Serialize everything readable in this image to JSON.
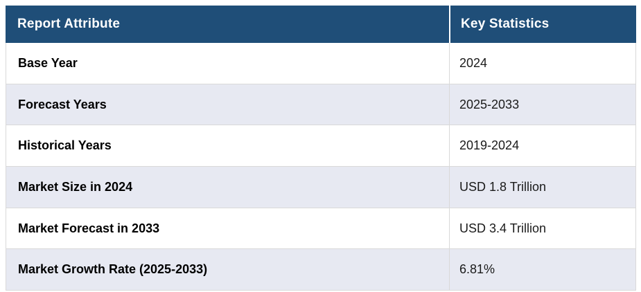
{
  "table": {
    "columns": [
      "Report Attribute",
      "Key Statistics"
    ],
    "rows": [
      {
        "attribute": "Base Year",
        "value": "2024"
      },
      {
        "attribute": "Forecast Years",
        "value": "2025-2033"
      },
      {
        "attribute": "Historical Years",
        "value": "2019-2024"
      },
      {
        "attribute": "Market Size in 2024",
        "value": "USD 1.8 Trillion"
      },
      {
        "attribute": "Market Forecast in 2033",
        "value": "USD 3.4 Trillion"
      },
      {
        "attribute": "Market Growth Rate (2025-2033)",
        "value": "6.81%"
      }
    ]
  },
  "colors": {
    "header_background": "#1f4e78",
    "header_text": "#ffffff",
    "row_background": "#ffffff",
    "row_alt_background": "#e7e9f2",
    "border": "#d9d9d9",
    "body_text": "#000000"
  }
}
